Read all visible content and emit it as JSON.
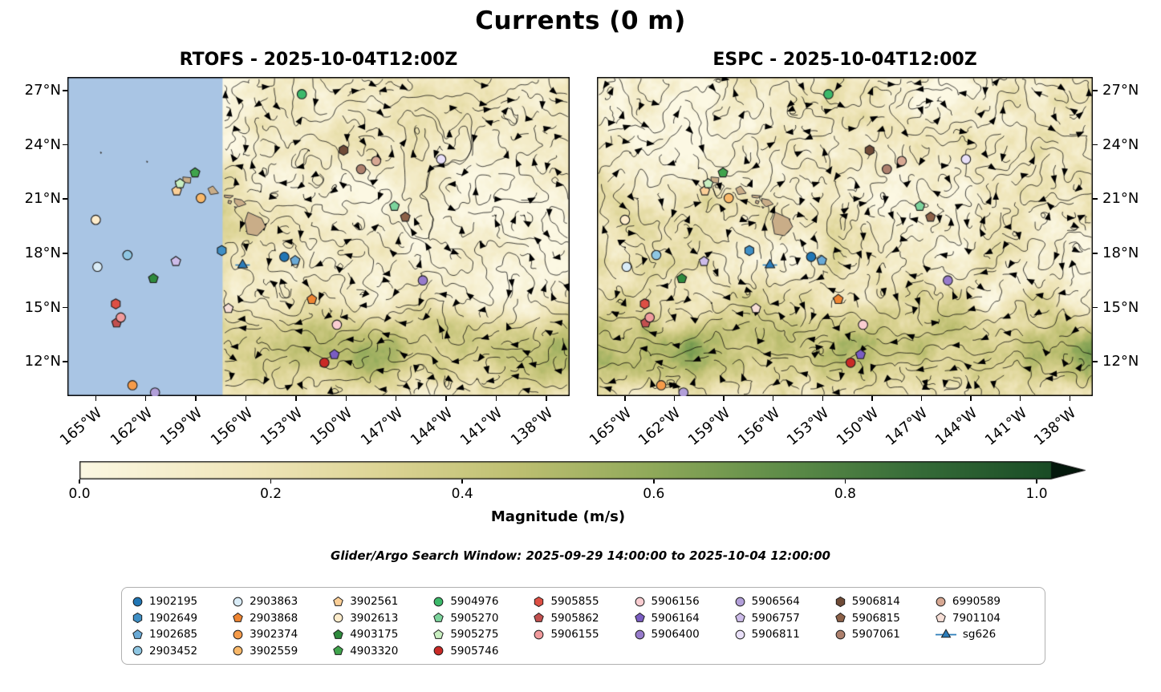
{
  "chart_data": {
    "type": "map-streamplot",
    "title": "Currents (0 m)",
    "panels": [
      {
        "model": "RTOFS",
        "title": "RTOFS - 2025-10-04T12:00Z",
        "timestamp": "2025-10-04T12:00Z",
        "masked_region": true,
        "seed": 7,
        "energy": 1.0
      },
      {
        "model": "ESPC",
        "title": "ESPC - 2025-10-04T12:00Z",
        "timestamp": "2025-10-04T12:00Z",
        "masked_region": false,
        "seed": 31,
        "energy": 1.22
      }
    ],
    "axes": {
      "lon_range": [
        -166.7,
        -136.6
      ],
      "lat_range": [
        10.1,
        27.75
      ],
      "lon_ticks": [
        {
          "value": -165,
          "label": "165°W"
        },
        {
          "value": -162,
          "label": "162°W"
        },
        {
          "value": -159,
          "label": "159°W"
        },
        {
          "value": -156,
          "label": "156°W"
        },
        {
          "value": -153,
          "label": "153°W"
        },
        {
          "value": -150,
          "label": "150°W"
        },
        {
          "value": -147,
          "label": "147°W"
        },
        {
          "value": -144,
          "label": "144°W"
        },
        {
          "value": -141,
          "label": "141°W"
        },
        {
          "value": -138,
          "label": "138°W"
        }
      ],
      "lat_ticks": [
        {
          "value": 27,
          "label": "27°N"
        },
        {
          "value": 24,
          "label": "24°N"
        },
        {
          "value": 21,
          "label": "21°N"
        },
        {
          "value": 18,
          "label": "18°N"
        },
        {
          "value": 15,
          "label": "15°N"
        },
        {
          "value": 12,
          "label": "12°N"
        }
      ]
    },
    "colorbar": {
      "label": "Magnitude (m/s)",
      "range": [
        0,
        1
      ],
      "extend": "max",
      "ticks": [
        {
          "value": 0.0,
          "label": "0.0"
        },
        {
          "value": 0.2,
          "label": "0.2"
        },
        {
          "value": 0.4,
          "label": "0.4"
        },
        {
          "value": 0.6,
          "label": "0.6"
        },
        {
          "value": 0.8,
          "label": "0.8"
        },
        {
          "value": 1.0,
          "label": "1.0"
        }
      ],
      "stops": [
        {
          "v": 0.0,
          "c": "#fcf8e3"
        },
        {
          "v": 0.18,
          "c": "#f0e6ba"
        },
        {
          "v": 0.32,
          "c": "#dcd494"
        },
        {
          "v": 0.46,
          "c": "#bdbf71"
        },
        {
          "v": 0.6,
          "c": "#8fa95a"
        },
        {
          "v": 0.74,
          "c": "#5d8c48"
        },
        {
          "v": 0.88,
          "c": "#356b38"
        },
        {
          "v": 1.0,
          "c": "#1d5028"
        },
        {
          "v": 1.12,
          "c": "#0b2c15"
        },
        {
          "v": 1.25,
          "c": "#03120a"
        }
      ]
    },
    "mask": {
      "west_of_lon": -157.4,
      "color": "#a9c5e4"
    },
    "islands_style": {
      "fill": "#c9ad88",
      "stroke": "#333333"
    },
    "islands": [
      {
        "name": "hawaii",
        "pts": [
          [
            -155.88,
            20.27
          ],
          [
            -155.06,
            19.93
          ],
          [
            -154.82,
            19.47
          ],
          [
            -155.32,
            18.97
          ],
          [
            -155.92,
            19.07
          ],
          [
            -156.06,
            19.78
          ]
        ]
      },
      {
        "name": "maui",
        "pts": [
          [
            -156.7,
            21.03
          ],
          [
            -156.25,
            20.95
          ],
          [
            -155.99,
            20.72
          ],
          [
            -156.45,
            20.57
          ],
          [
            -156.68,
            20.8
          ]
        ]
      },
      {
        "name": "kahoolawe",
        "pts": [
          [
            -156.7,
            20.58
          ],
          [
            -156.55,
            20.55
          ],
          [
            -156.62,
            20.48
          ]
        ]
      },
      {
        "name": "lanai",
        "pts": [
          [
            -157.05,
            20.93
          ],
          [
            -156.85,
            20.88
          ],
          [
            -156.92,
            20.73
          ],
          [
            -157.08,
            20.78
          ]
        ]
      },
      {
        "name": "molokai",
        "pts": [
          [
            -157.3,
            21.22
          ],
          [
            -156.75,
            21.18
          ],
          [
            -156.95,
            21.05
          ],
          [
            -157.28,
            21.1
          ]
        ]
      },
      {
        "name": "oahu",
        "pts": [
          [
            -158.28,
            21.58
          ],
          [
            -157.98,
            21.72
          ],
          [
            -157.64,
            21.32
          ],
          [
            -158.12,
            21.25
          ]
        ]
      },
      {
        "name": "kauai",
        "pts": [
          [
            -159.78,
            22.22
          ],
          [
            -159.3,
            22.18
          ],
          [
            -159.33,
            21.88
          ],
          [
            -159.77,
            21.92
          ]
        ]
      },
      {
        "name": "niihau",
        "pts": [
          [
            -160.24,
            22.02
          ],
          [
            -160.06,
            21.92
          ],
          [
            -160.2,
            21.78
          ]
        ]
      },
      {
        "name": "nihoa",
        "pts": [
          [
            -161.95,
            23.1
          ],
          [
            -161.88,
            23.06
          ],
          [
            -161.93,
            23.02
          ]
        ]
      },
      {
        "name": "necker",
        "pts": [
          [
            -164.72,
            23.6
          ],
          [
            -164.64,
            23.56
          ],
          [
            -164.7,
            23.52
          ]
        ]
      }
    ],
    "floats": [
      {
        "id": "1902195",
        "shape": "circle",
        "color": "#2076b4",
        "lon": -153.7,
        "lat": 17.8
      },
      {
        "id": "1902649",
        "shape": "hexagon",
        "color": "#3f8fc5",
        "lon": -157.45,
        "lat": 18.15
      },
      {
        "id": "1902685",
        "shape": "pentagon",
        "color": "#6aaad6",
        "lon": -153.05,
        "lat": 17.6
      },
      {
        "id": "2903452",
        "shape": "circle",
        "color": "#8ec6e2",
        "lon": -163.1,
        "lat": 17.9
      },
      {
        "id": "2903863",
        "shape": "circle",
        "color": "#d9ecf7",
        "lon": -164.9,
        "lat": 17.25
      },
      {
        "id": "2903868",
        "shape": "pentagon",
        "color": "#ef8532",
        "lon": -152.05,
        "lat": 15.45
      },
      {
        "id": "3902374",
        "shape": "circle",
        "color": "#f59b4a",
        "lon": -162.8,
        "lat": 10.7
      },
      {
        "id": "3902559",
        "shape": "circle",
        "color": "#f9b869",
        "lon": -158.7,
        "lat": 21.05
      },
      {
        "id": "3902561",
        "shape": "pentagon",
        "color": "#fbcf97",
        "lon": -160.15,
        "lat": 21.45
      },
      {
        "id": "3902613",
        "shape": "circle",
        "color": "#fdeccb",
        "lon": -165.0,
        "lat": 19.85
      },
      {
        "id": "4903175",
        "shape": "pentagon",
        "color": "#2f8a3d",
        "lon": -161.55,
        "lat": 16.6
      },
      {
        "id": "4903320",
        "shape": "pentagon",
        "color": "#40a44c",
        "lon": -159.05,
        "lat": 22.45
      },
      {
        "id": "5904976",
        "shape": "circle",
        "color": "#3cb96a",
        "lon": -152.65,
        "lat": 26.8
      },
      {
        "id": "5905270",
        "shape": "pentagon",
        "color": "#7cd49c",
        "lon": -147.1,
        "lat": 20.6
      },
      {
        "id": "5905275",
        "shape": "pentagon",
        "color": "#c8eec0",
        "lon": -159.95,
        "lat": 21.85
      },
      {
        "id": "5905746",
        "shape": "circle",
        "color": "#c92a26",
        "lon": -151.3,
        "lat": 11.95
      },
      {
        "id": "5905855",
        "shape": "hexagon",
        "color": "#dd4f44",
        "lon": -163.8,
        "lat": 15.2
      },
      {
        "id": "5905862",
        "shape": "pentagon",
        "color": "#c2504f",
        "lon": -163.75,
        "lat": 14.15
      },
      {
        "id": "5906155",
        "shape": "circle",
        "color": "#f09a9c",
        "lon": -163.5,
        "lat": 14.45
      },
      {
        "id": "5906156",
        "shape": "circle",
        "color": "#f9cdd1",
        "lon": -150.55,
        "lat": 14.05
      },
      {
        "id": "5906164",
        "shape": "pentagon",
        "color": "#7a5dc2",
        "lon": -150.7,
        "lat": 12.4
      },
      {
        "id": "5906400",
        "shape": "circle",
        "color": "#977bcb",
        "lon": -145.4,
        "lat": 16.5
      },
      {
        "id": "5906564",
        "shape": "circle",
        "color": "#b29fd9",
        "lon": -161.45,
        "lat": 10.3
      },
      {
        "id": "5906757",
        "shape": "pentagon",
        "color": "#cdbce9",
        "lon": -160.2,
        "lat": 17.55
      },
      {
        "id": "5906811",
        "shape": "circle",
        "color": "#e9e0f8",
        "lon": -144.3,
        "lat": 23.2
      },
      {
        "id": "5906814",
        "shape": "hexagon",
        "color": "#6f4b37",
        "lon": -150.15,
        "lat": 23.7
      },
      {
        "id": "5906815",
        "shape": "pentagon",
        "color": "#8d6148",
        "lon": -146.45,
        "lat": 20.0
      },
      {
        "id": "5907061",
        "shape": "circle",
        "color": "#ad806d",
        "lon": -149.1,
        "lat": 22.65
      },
      {
        "id": "6990589",
        "shape": "circle",
        "color": "#d7a893",
        "lon": -148.2,
        "lat": 23.1
      },
      {
        "id": "7901104",
        "shape": "pentagon",
        "color": "#f6ded6",
        "lon": -157.05,
        "lat": 14.95
      },
      {
        "id": "sg626",
        "shape": "triangle",
        "color": "#2b7cb9",
        "lon": -156.2,
        "lat": 17.35
      }
    ],
    "legend_columns": [
      [
        "1902195",
        "1902649",
        "1902685",
        "2903452"
      ],
      [
        "2903863",
        "2903868",
        "3902374",
        "3902559"
      ],
      [
        "3902561",
        "3902613",
        "4903175",
        "4903320"
      ],
      [
        "5904976",
        "5905270",
        "5905275",
        "5905746"
      ],
      [
        "5905855",
        "5905862",
        "5906155"
      ],
      [
        "5906156",
        "5906164",
        "5906400"
      ],
      [
        "5906564",
        "5906757",
        "5906811"
      ],
      [
        "5906814",
        "5906815",
        "5907061"
      ],
      [
        "6990589",
        "7901104",
        "sg626"
      ]
    ],
    "annotations": {
      "search_window": "Glider/Argo Search Window: 2025-09-29 14:00:00 to 2025-10-04 12:00:00"
    }
  }
}
